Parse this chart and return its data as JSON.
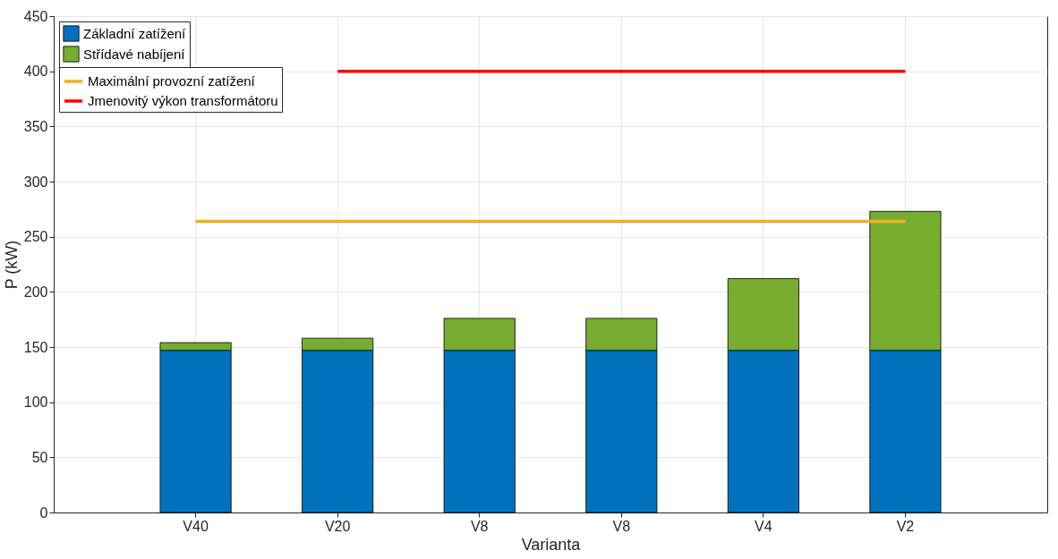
{
  "chart_data": {
    "type": "bar",
    "stacked": true,
    "xlabel": "Varianta",
    "ylabel": "P (kW)",
    "categories": [
      "V40",
      "V20",
      "V8",
      "V8",
      "V4",
      "V2"
    ],
    "series": [
      {
        "name": "Základní zatížení",
        "color": "#0072bd",
        "values": [
          147,
          147,
          147,
          147,
          147,
          147
        ]
      },
      {
        "name": "Střídavé nabíjení",
        "color": "#77ac30",
        "values": [
          7,
          11,
          29,
          29,
          65,
          126
        ]
      },
      {
        "name": "Maximální provozní zatížení",
        "type": "line",
        "color": "#edb120",
        "values": [
          264,
          264,
          264,
          264,
          264,
          264
        ]
      },
      {
        "name": "Jmenovitý výkon transformátoru",
        "type": "line",
        "color": "#ff0000",
        "values": [
          null,
          400,
          400,
          400,
          400,
          400
        ]
      }
    ],
    "ylim": [
      0,
      450
    ],
    "yticks": [
      0,
      50,
      100,
      150,
      200,
      250,
      300,
      350,
      400,
      450
    ],
    "grid": true,
    "legend": "top left"
  }
}
